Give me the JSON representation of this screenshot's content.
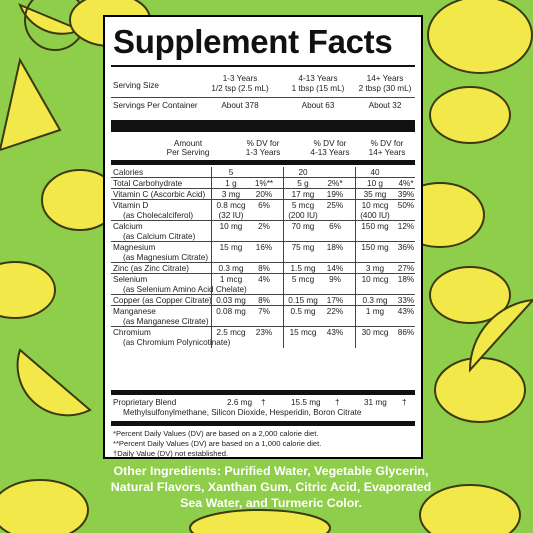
{
  "title": "Supplement Facts",
  "serving": {
    "label": "Serving Size",
    "cols": [
      {
        "age": "1-3 Years",
        "amount": "1/2 tsp (2.5 mL)"
      },
      {
        "age": "4-13 Years",
        "amount": "1 tbsp (15 mL)"
      },
      {
        "age": "14+ Years",
        "amount": "2 tbsp (30 mL)"
      }
    ]
  },
  "servings_per_container": {
    "label": "Servings Per Container",
    "values": [
      "About 378",
      "About 63",
      "About 32"
    ]
  },
  "header": {
    "amount": "Amount",
    "per_serving": "Per Serving",
    "dv1_a": "% DV for",
    "dv1_b": "1-3 Years",
    "dv2_a": "% DV for",
    "dv2_b": "4-13 Years",
    "dv3_a": "% DV for",
    "dv3_b": "14+ Years"
  },
  "rows": [
    {
      "name": "Calories",
      "sub": "",
      "a1": "5",
      "d1": "",
      "a2": "20",
      "d2": "",
      "a3": "40",
      "d3": ""
    },
    {
      "name": "Total Carbohydrate",
      "sub": "",
      "a1": "1 g",
      "d1": "1%**",
      "a2": "5 g",
      "d2": "2%*",
      "a3": "10 g",
      "d3": "4%*"
    },
    {
      "name": "Vitamin C (Ascorbic Acid)",
      "sub": "",
      "a1": "3 mg",
      "d1": "20%",
      "a2": "17 mg",
      "d2": "19%",
      "a3": "35 mg",
      "d3": "39%"
    },
    {
      "name": "Vitamin D",
      "sub": "(as Cholecalciferol)",
      "a1": "0.8 mcg",
      "a1b": "(32 IU)",
      "d1": "6%",
      "a2": "5 mcg",
      "a2b": "(200 IU)",
      "d2": "25%",
      "a3": "10 mcg",
      "a3b": "(400 IU)",
      "d3": "50%"
    },
    {
      "name": "Calcium",
      "sub": "(as Calcium Citrate)",
      "a1": "10 mg",
      "d1": "2%",
      "a2": "70 mg",
      "d2": "6%",
      "a3": "150 mg",
      "d3": "12%"
    },
    {
      "name": "Magnesium",
      "sub": "(as Magnesium Citrate)",
      "a1": "15 mg",
      "d1": "16%",
      "a2": "75 mg",
      "d2": "18%",
      "a3": "150 mg",
      "d3": "36%"
    },
    {
      "name": "Zinc (as Zinc Citrate)",
      "sub": "",
      "a1": "0.3 mg",
      "d1": "8%",
      "a2": "1.5 mg",
      "d2": "14%",
      "a3": "3 mg",
      "d3": "27%"
    },
    {
      "name": "Selenium",
      "sub": "(as Selenium Amino Acid Chelate)",
      "a1": "1 mcg",
      "d1": "4%",
      "a2": "5 mcg",
      "d2": "9%",
      "a3": "10 mcg",
      "d3": "18%"
    },
    {
      "name": "Copper (as Copper Citrate)",
      "sub": "",
      "a1": "0.03 mg",
      "d1": "8%",
      "a2": "0.15 mg",
      "d2": "17%",
      "a3": "0.3 mg",
      "d3": "33%"
    },
    {
      "name": "Manganese",
      "sub": "(as Manganese Citrate)",
      "a1": "0.08 mg",
      "d1": "7%",
      "a2": "0.5 mg",
      "d2": "22%",
      "a3": "1 mg",
      "d3": "43%"
    },
    {
      "name": "Chromium",
      "sub": "(as Chromium Polynicotinate)",
      "a1": "2.5 mcg",
      "d1": "23%",
      "a2": "15 mcg",
      "d2": "43%",
      "a3": "30 mcg",
      "d3": "86%"
    }
  ],
  "blend": {
    "name": "Proprietary Blend",
    "a1": "2.6 mg",
    "d1": "†",
    "a2": "15.5 mg",
    "d2": "†",
    "a3": "31 mg",
    "d3": "†",
    "ingredients": "Methylsulfonylmethane, Silicon Dioxide, Hesperidin, Boron Citrate"
  },
  "footnotes": [
    "*Percent Daily Values (DV) are based on a 2,000 calorie diet.",
    "**Percent Daily Values (DV) are based on a 1,000 calorie diet.",
    "†Daily Value (DV) not established."
  ],
  "other_ingredients": "Other Ingredients: Purified Water, Vegetable Glycerin, Natural Flavors, Xanthan Gum, Citric Acid, Evaporated Sea Water, and Turmeric Color.",
  "colors": {
    "background": "#8fce4a",
    "lemon": "#f3e84a",
    "lemon_outline": "#3b3a12",
    "panel": "#ffffff"
  }
}
